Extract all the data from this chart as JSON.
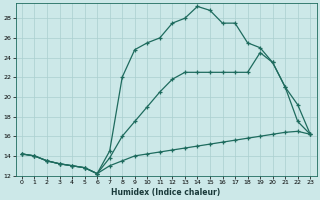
{
  "xlabel": "Humidex (Indice chaleur)",
  "bg_color": "#cce8e8",
  "line_color": "#1e6b5e",
  "grid_color": "#aacfcf",
  "xlim": [
    -0.5,
    23.5
  ],
  "ylim": [
    12,
    29.5
  ],
  "xticks": [
    0,
    1,
    2,
    3,
    4,
    5,
    6,
    7,
    8,
    9,
    10,
    11,
    12,
    13,
    14,
    15,
    16,
    17,
    18,
    19,
    20,
    21,
    22,
    23
  ],
  "yticks": [
    12,
    14,
    16,
    18,
    20,
    22,
    24,
    26,
    28
  ],
  "line_top_x": [
    0,
    1,
    2,
    3,
    4,
    5,
    6,
    7,
    8,
    9,
    10,
    11,
    12,
    13,
    14,
    15,
    16,
    17,
    18,
    19,
    20,
    21,
    22,
    23
  ],
  "line_top_y": [
    14.2,
    14.0,
    13.5,
    13.2,
    13.0,
    12.8,
    12.2,
    14.5,
    22.0,
    24.8,
    25.5,
    26.0,
    27.5,
    28.0,
    29.2,
    28.8,
    27.5,
    27.5,
    25.5,
    25.0,
    23.5,
    21.0,
    19.2,
    16.2
  ],
  "line_mid_x": [
    0,
    1,
    2,
    3,
    4,
    5,
    6,
    7,
    8,
    9,
    10,
    11,
    12,
    13,
    14,
    15,
    16,
    17,
    18,
    19,
    20,
    21,
    22,
    23
  ],
  "line_mid_y": [
    14.2,
    14.0,
    13.5,
    13.2,
    13.0,
    12.8,
    12.2,
    13.8,
    16.0,
    17.5,
    19.0,
    20.5,
    21.8,
    22.5,
    22.5,
    22.5,
    22.5,
    22.5,
    22.5,
    24.5,
    23.5,
    21.0,
    17.5,
    16.2
  ],
  "line_bot_x": [
    0,
    1,
    2,
    3,
    4,
    5,
    6,
    7,
    8,
    9,
    10,
    11,
    12,
    13,
    14,
    15,
    16,
    17,
    18,
    19,
    20,
    21,
    22,
    23
  ],
  "line_bot_y": [
    14.2,
    14.0,
    13.5,
    13.2,
    13.0,
    12.8,
    12.2,
    13.0,
    13.5,
    14.0,
    14.2,
    14.4,
    14.6,
    14.8,
    15.0,
    15.2,
    15.4,
    15.6,
    15.8,
    16.0,
    16.2,
    16.4,
    16.5,
    16.2
  ]
}
